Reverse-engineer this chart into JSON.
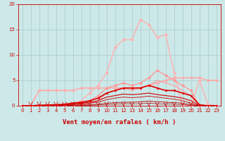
{
  "background_color": "#cce8e8",
  "grid_color": "#aacccc",
  "xlabel": "Vent moyen/en rafales ( km/h )",
  "tick_color": "#cc0000",
  "xlim": [
    -0.5,
    23.5
  ],
  "ylim": [
    0,
    20
  ],
  "yticks": [
    0,
    5,
    10,
    15,
    20
  ],
  "xticks": [
    0,
    1,
    2,
    3,
    4,
    5,
    6,
    7,
    8,
    9,
    10,
    11,
    12,
    13,
    14,
    15,
    16,
    17,
    18,
    19,
    20,
    21,
    22,
    23
  ],
  "lines": [
    {
      "x": [
        0,
        1,
        2,
        3,
        4,
        5,
        6,
        7,
        8,
        9,
        10,
        11,
        12,
        13,
        14,
        15,
        16,
        17,
        18,
        19,
        20,
        21,
        22,
        23
      ],
      "y": [
        0,
        0,
        0,
        0,
        0,
        0,
        0.3,
        1.0,
        2.5,
        4.0,
        6.5,
        11.5,
        13.0,
        13.0,
        17.0,
        16.0,
        13.5,
        14.0,
        6.5,
        0,
        0,
        5.0,
        0.3,
        0
      ],
      "color": "#ffb0b0",
      "lw": 1.0,
      "marker": "D",
      "ms": 2.0,
      "zorder": 3
    },
    {
      "x": [
        0,
        1,
        2,
        3,
        4,
        5,
        6,
        7,
        8,
        9,
        10,
        11,
        12,
        13,
        14,
        15,
        16,
        17,
        18,
        19,
        20,
        21,
        22,
        23
      ],
      "y": [
        0,
        0,
        3.0,
        3.0,
        3.0,
        3.0,
        3.0,
        3.5,
        3.5,
        3.5,
        3.5,
        3.5,
        3.5,
        3.5,
        3.5,
        4.0,
        4.5,
        5.0,
        5.5,
        5.5,
        5.5,
        5.5,
        5.0,
        5.0
      ],
      "color": "#ffaaaa",
      "lw": 1.2,
      "marker": "D",
      "ms": 2.0,
      "zorder": 3
    },
    {
      "x": [
        0,
        1,
        2,
        3,
        4,
        5,
        6,
        7,
        8,
        9,
        10,
        11,
        12,
        13,
        14,
        15,
        16,
        17,
        18,
        19,
        20,
        21,
        22,
        23
      ],
      "y": [
        0,
        0,
        0,
        0,
        0,
        0,
        0,
        0.5,
        1.0,
        2.0,
        3.5,
        4.0,
        4.5,
        4.0,
        4.5,
        5.5,
        7.0,
        6.0,
        5.0,
        4.0,
        3.0,
        0,
        0,
        0
      ],
      "color": "#ff9999",
      "lw": 1.0,
      "marker": "D",
      "ms": 2.0,
      "zorder": 3
    },
    {
      "x": [
        0,
        1,
        2,
        3,
        4,
        5,
        6,
        7,
        8,
        9,
        10,
        11,
        12,
        13,
        14,
        15,
        16,
        17,
        18,
        19,
        20,
        21,
        22,
        23
      ],
      "y": [
        0,
        0,
        0,
        0,
        0,
        0,
        0,
        0.3,
        0.5,
        1.0,
        2.5,
        3.0,
        3.5,
        3.0,
        3.5,
        4.0,
        5.0,
        4.5,
        4.0,
        3.0,
        2.0,
        0,
        0,
        0
      ],
      "color": "#ff9999",
      "lw": 0.8,
      "marker": null,
      "ms": 0,
      "zorder": 2
    },
    {
      "x": [
        0,
        1,
        2,
        3,
        4,
        5,
        6,
        7,
        8,
        9,
        10,
        11,
        12,
        13,
        14,
        15,
        16,
        17,
        18,
        19,
        20,
        21,
        22,
        23
      ],
      "y": [
        0,
        0,
        0.1,
        0.15,
        0.2,
        0.3,
        0.5,
        0.7,
        1.0,
        1.5,
        2.5,
        3.0,
        3.5,
        3.5,
        3.5,
        4.0,
        3.5,
        3.0,
        3.0,
        2.5,
        2.0,
        0.2,
        0,
        0
      ],
      "color": "#dd0000",
      "lw": 1.2,
      "marker": "s",
      "ms": 2.0,
      "zorder": 5
    },
    {
      "x": [
        0,
        1,
        2,
        3,
        4,
        5,
        6,
        7,
        8,
        9,
        10,
        11,
        12,
        13,
        14,
        15,
        16,
        17,
        18,
        19,
        20,
        21,
        22,
        23
      ],
      "y": [
        0,
        0,
        0.05,
        0.1,
        0.15,
        0.2,
        0.35,
        0.5,
        0.7,
        1.0,
        1.7,
        2.0,
        2.3,
        2.2,
        2.3,
        2.5,
        2.2,
        2.0,
        1.8,
        1.5,
        1.0,
        0.05,
        0,
        0
      ],
      "color": "#cc0000",
      "lw": 0.8,
      "marker": null,
      "ms": 0,
      "zorder": 4
    },
    {
      "x": [
        0,
        1,
        2,
        3,
        4,
        5,
        6,
        7,
        8,
        9,
        10,
        11,
        12,
        13,
        14,
        15,
        16,
        17,
        18,
        19,
        20,
        21,
        22,
        23
      ],
      "y": [
        0,
        0,
        0,
        0.05,
        0.1,
        0.15,
        0.25,
        0.35,
        0.5,
        0.7,
        1.2,
        1.5,
        1.7,
        1.6,
        1.7,
        1.9,
        1.7,
        1.5,
        1.3,
        1.0,
        0.5,
        0,
        0,
        0
      ],
      "color": "#cc0000",
      "lw": 0.6,
      "marker": null,
      "ms": 0,
      "zorder": 4
    },
    {
      "x": [
        0,
        1,
        2,
        3,
        4,
        5,
        6,
        7,
        8,
        9,
        10,
        11,
        12,
        13,
        14,
        15,
        16,
        17,
        18,
        19,
        20,
        21,
        22,
        23
      ],
      "y": [
        0,
        0,
        0,
        0,
        0.05,
        0.05,
        0.1,
        0.15,
        0.2,
        0.3,
        0.5,
        0.6,
        0.7,
        0.7,
        0.8,
        0.9,
        0.8,
        0.7,
        0.6,
        0.5,
        0.2,
        0,
        0,
        0
      ],
      "color": "#bb0000",
      "lw": 0.6,
      "marker": null,
      "ms": 0,
      "zorder": 4
    },
    {
      "x": [
        0,
        1,
        2,
        3,
        4,
        5,
        6,
        7,
        8,
        9,
        10,
        11,
        12,
        13,
        14,
        15,
        16,
        17,
        18,
        19,
        20,
        21,
        22,
        23
      ],
      "y": [
        0,
        0,
        0,
        0,
        0,
        0.02,
        0.05,
        0.08,
        0.1,
        0.15,
        0.25,
        0.3,
        0.4,
        0.4,
        0.4,
        0.5,
        0.4,
        0.35,
        0.3,
        0.2,
        0.1,
        0,
        0,
        0
      ],
      "color": "#aa0000",
      "lw": 0.5,
      "marker": null,
      "ms": 0,
      "zorder": 4
    }
  ],
  "arrows_x": [
    1,
    2,
    3,
    4,
    5,
    6,
    7,
    8,
    9,
    10,
    11,
    12,
    13,
    14,
    15,
    16,
    17,
    18,
    19,
    20
  ],
  "tick_fontsize": 5,
  "xlabel_fontsize": 6.5
}
